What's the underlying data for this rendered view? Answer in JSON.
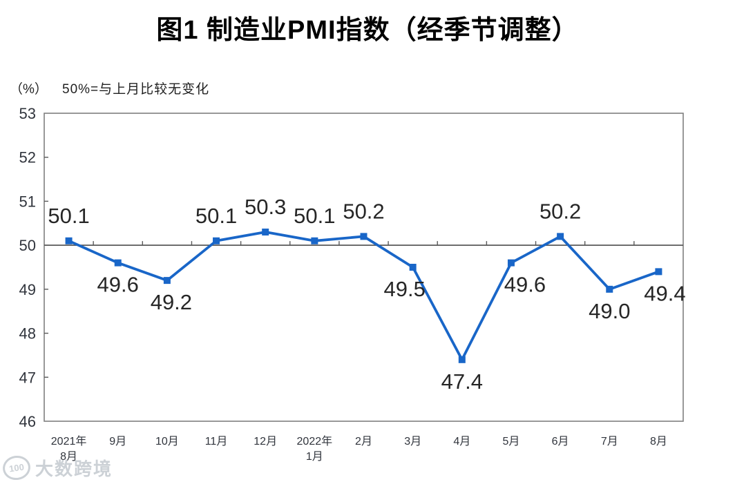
{
  "page": {
    "title": "图1 制造业PMI指数（经季节调整）",
    "unit_label": "（%）",
    "axis_note": "50%=与上月比较无变化",
    "watermark": {
      "logo_text": "100",
      "brand_text": "大数跨境"
    }
  },
  "colors": {
    "series": "#1966C8",
    "axis_line": "#595959",
    "plot_border": "#7f7f7f",
    "label_text": "#262626",
    "axis_text": "#30343c",
    "watermark": "#ccd1d6"
  },
  "chart_data": {
    "type": "line",
    "title": "图1 制造业PMI指数（经季节调整）",
    "subtitle": "50%=与上月比较无变化",
    "unit": "（%）",
    "categories": [
      "2021年|8月",
      "9月",
      "10月",
      "11月",
      "12月",
      "2022年|1月",
      "2月",
      "3月",
      "4月",
      "5月",
      "6月",
      "7月",
      "8月"
    ],
    "values": [
      50.1,
      49.6,
      49.2,
      50.1,
      50.3,
      50.1,
      50.2,
      49.5,
      47.4,
      49.6,
      50.2,
      49.0,
      49.4
    ],
    "data_labels": [
      "50.1",
      "49.6",
      "49.2",
      "50.1",
      "50.3",
      "50.1",
      "50.2",
      "49.5",
      "47.4",
      "49.6",
      "50.2",
      "49.0",
      "49.4"
    ],
    "label_side": [
      "above",
      "below",
      "below",
      "above",
      "above",
      "above",
      "above",
      "below",
      "below",
      "below",
      "above",
      "below",
      "below"
    ],
    "label_dx": [
      0,
      0,
      6,
      0,
      0,
      0,
      0,
      -12,
      0,
      20,
      0,
      0,
      9
    ],
    "ylim": [
      46,
      53
    ],
    "yticks": [
      46,
      47,
      48,
      49,
      50,
      51,
      52,
      53
    ],
    "reference_line": 50,
    "grid": false,
    "legend": false,
    "marker": "square",
    "series_color": "#1966C8"
  }
}
